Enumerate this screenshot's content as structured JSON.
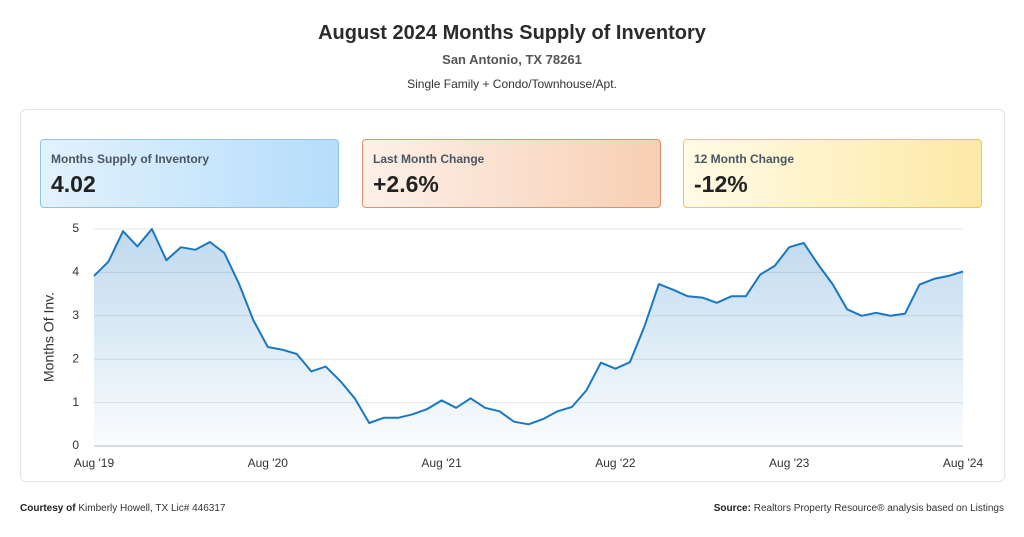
{
  "header": {
    "title": "August 2024 Months Supply of Inventory",
    "location": "San Antonio, TX 78261",
    "property_types": "Single Family + Condo/Townhouse/Apt."
  },
  "cards": [
    {
      "label": "Months Supply of Inventory",
      "value": "4.02"
    },
    {
      "label": "Last Month Change",
      "value": "+2.6%"
    },
    {
      "label": "12 Month Change",
      "value": "-12%"
    }
  ],
  "chart_data": {
    "type": "line",
    "y_label": "Months Of Inv.",
    "color": "#1a78c2",
    "categories": [
      "Aug '19",
      null,
      null,
      null,
      null,
      null,
      null,
      null,
      null,
      null,
      null,
      null,
      "Aug '20",
      null,
      null,
      null,
      null,
      null,
      null,
      null,
      null,
      null,
      null,
      null,
      "Aug '21",
      null,
      null,
      null,
      null,
      null,
      null,
      null,
      null,
      null,
      null,
      null,
      "Aug '22",
      null,
      null,
      null,
      null,
      null,
      null,
      null,
      null,
      null,
      null,
      null,
      "Aug '23",
      null,
      null,
      null,
      null,
      null,
      null,
      null,
      null,
      null,
      null,
      null,
      "Aug '24"
    ],
    "values": [
      3.92,
      4.25,
      4.95,
      4.6,
      5.0,
      4.28,
      4.58,
      4.52,
      4.7,
      4.45,
      3.75,
      2.9,
      2.28,
      2.22,
      2.12,
      1.72,
      1.83,
      1.5,
      1.1,
      0.53,
      0.65,
      0.65,
      0.73,
      0.85,
      1.05,
      0.88,
      1.1,
      0.88,
      0.8,
      0.56,
      0.5,
      0.62,
      0.8,
      0.9,
      1.28,
      1.92,
      1.78,
      1.93,
      2.75,
      3.73,
      3.6,
      3.45,
      3.42,
      3.3,
      3.45,
      3.45,
      3.95,
      4.15,
      4.58,
      4.68,
      4.18,
      3.73,
      3.15,
      3.0,
      3.07,
      3.0,
      3.05,
      3.72,
      3.85,
      3.92,
      4.02
    ],
    "ylim": [
      0,
      5
    ],
    "yticks": [
      0,
      1,
      2,
      3,
      4,
      5
    ],
    "grid": true
  },
  "footer": {
    "courtesy_label": "Courtesy of",
    "courtesy": "Kimberly Howell, TX Lic# 446317",
    "source_label": "Source:",
    "source": "Realtors Property Resource® analysis based on Listings"
  }
}
